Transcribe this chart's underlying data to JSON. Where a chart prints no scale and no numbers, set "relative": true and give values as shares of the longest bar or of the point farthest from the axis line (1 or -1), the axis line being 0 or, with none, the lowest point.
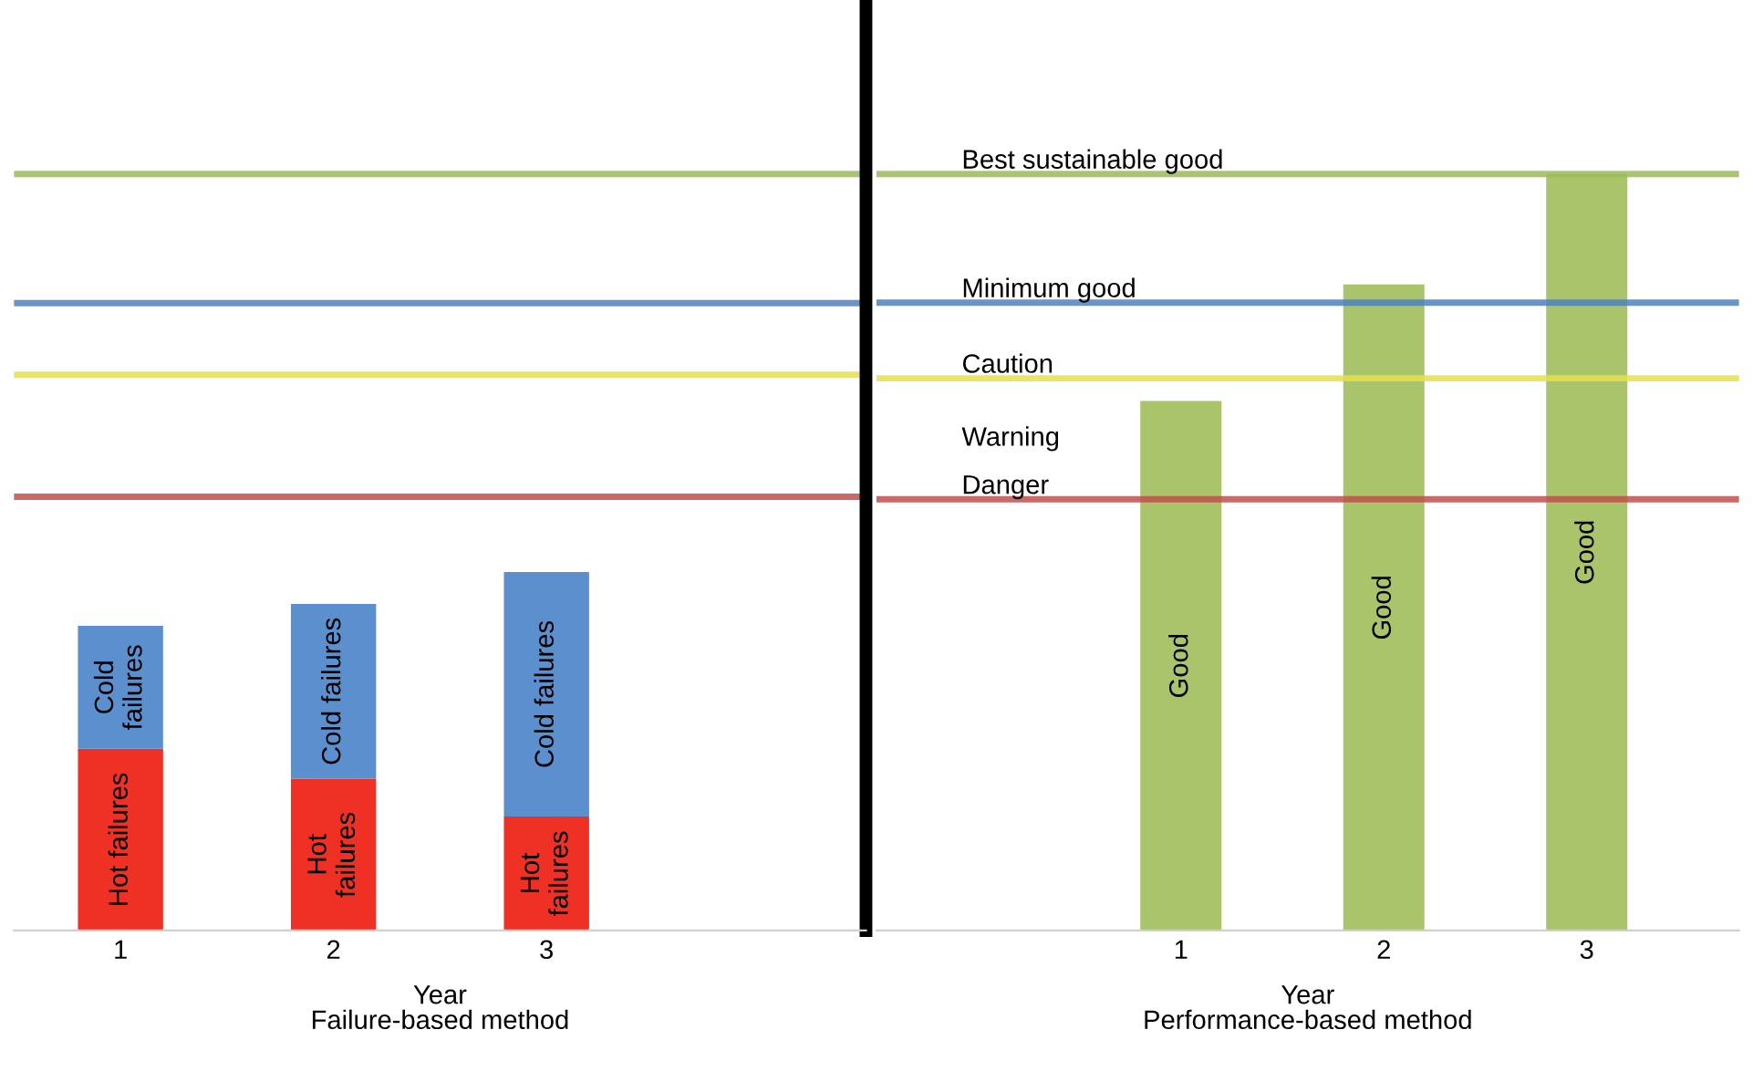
{
  "chart_data": [
    {
      "type": "bar",
      "relative": true,
      "stacked": true,
      "categories": [
        "1",
        "2",
        "3"
      ],
      "xlabel": "Year",
      "annotations": [
        "Failure-based method"
      ],
      "series": [
        {
          "name": "Hot failures",
          "color": "#ee3124",
          "values": [
            0.507,
            0.423,
            0.318
          ]
        },
        {
          "name": "Cold failures",
          "color": "#5b8fce",
          "values": [
            0.343,
            0.488,
            0.682
          ]
        }
      ],
      "ref_lines": [
        {
          "axis": "y",
          "value": 2.11,
          "color": "#9bbb59"
        },
        {
          "axis": "y",
          "value": 1.75,
          "color": "#4f81bd"
        },
        {
          "axis": "y",
          "value": 1.55,
          "color": "#e8e04a"
        },
        {
          "axis": "y",
          "value": 1.21,
          "color": "#c0504d"
        }
      ],
      "legend": false,
      "grid": false
    },
    {
      "type": "bar",
      "relative": true,
      "categories": [
        "1",
        "2",
        "3"
      ],
      "xlabel": "Year",
      "annotations": [
        "Performance-based method",
        "Warning"
      ],
      "series": [
        {
          "name": "Good",
          "color": "#a9c46a",
          "values": [
            0.7,
            0.854,
            1.0
          ]
        }
      ],
      "ref_lines": [
        {
          "axis": "y",
          "value": 1.0,
          "color": "#9bbb59",
          "label": "Best sustainable good"
        },
        {
          "axis": "y",
          "value": 0.83,
          "color": "#4f81bd",
          "label": "Minimum good"
        },
        {
          "axis": "y",
          "value": 0.73,
          "color": "#e8e04a",
          "label": "Caution"
        },
        {
          "axis": "y",
          "value": 0.57,
          "color": "#c0504d",
          "label": "Danger"
        }
      ],
      "legend": false,
      "grid": false
    }
  ]
}
